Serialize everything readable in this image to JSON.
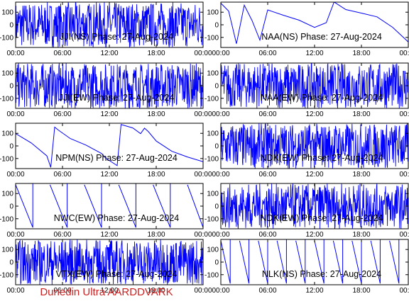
{
  "footer": "Dunedin Ultra AARDDVARK",
  "colors": {
    "trace": "#0000ff",
    "axes": "#000000",
    "footer": "#cc2222"
  },
  "chart_data": [
    {
      "type": "line",
      "title": "JJI(NS) Phase: 27-Aug-2024",
      "ylim": [
        -180,
        180
      ],
      "xlim": [
        0,
        24
      ],
      "yticks": [
        "100",
        "0",
        "-100"
      ],
      "xticks": [
        "00:00",
        "06:00",
        "12:00",
        "18:00",
        "00:00"
      ],
      "pattern": "noise",
      "x": [
        0,
        2,
        4,
        5.5,
        24
      ],
      "y": [
        0,
        0,
        0,
        0,
        0
      ]
    },
    {
      "type": "line",
      "title": "NAA(NS) Phase: 27-Aug-2024",
      "ylim": [
        -180,
        180
      ],
      "xlim": [
        0,
        24
      ],
      "yticks": [
        "100",
        "0",
        "-100"
      ],
      "xticks": [
        "00:00",
        "06:00",
        "12:00",
        "18:00",
        "00:00"
      ],
      "pattern": "trace",
      "x": [
        0,
        1,
        2,
        3,
        4,
        5,
        6,
        8,
        10,
        12,
        13.5,
        14.5,
        16,
        18,
        20,
        22,
        24
      ],
      "y": [
        170,
        110,
        -150,
        160,
        30,
        -120,
        120,
        80,
        40,
        -20,
        20,
        180,
        120,
        90,
        60,
        -20,
        -140
      ]
    },
    {
      "type": "line",
      "title": "JJI(EW) Phase: 27-Aug-2024",
      "ylim": [
        -180,
        180
      ],
      "xlim": [
        0,
        24
      ],
      "yticks": [
        "100",
        "0",
        "-100"
      ],
      "xticks": [
        "00:00",
        "06:00",
        "12:00",
        "18:00",
        "00:00"
      ],
      "pattern": "noise",
      "x": [
        0,
        6,
        12,
        18,
        24
      ],
      "y": [
        0,
        0,
        0,
        0,
        0
      ]
    },
    {
      "type": "line",
      "title": "NAA(EW) Phase: 27-Aug-2024",
      "ylim": [
        -180,
        180
      ],
      "xlim": [
        0,
        24
      ],
      "yticks": [
        "100",
        "0",
        "-100"
      ],
      "xticks": [
        "00:00",
        "06:00",
        "12:00",
        "18:00",
        "00:00"
      ],
      "pattern": "noise",
      "x": [
        0,
        6,
        12,
        18,
        24
      ],
      "y": [
        0,
        0,
        0,
        0,
        0
      ]
    },
    {
      "type": "line",
      "title": "NPM(NS) Phase: 27-Aug-2024",
      "ylim": [
        -180,
        180
      ],
      "xlim": [
        0,
        24
      ],
      "yticks": [
        "100",
        "0",
        "-100"
      ],
      "xticks": [
        "00:00",
        "06:00",
        "12:00",
        "18:00",
        "00:00"
      ],
      "pattern": "trace",
      "x": [
        0,
        2,
        4,
        4.5,
        5,
        5.5,
        7,
        9,
        11,
        11.5,
        13,
        13.5,
        15,
        16,
        16.5,
        17,
        18,
        20,
        22,
        24
      ],
      "y": [
        100,
        20,
        -80,
        -170,
        150,
        120,
        60,
        10,
        -60,
        -100,
        -160,
        170,
        140,
        100,
        140,
        110,
        40,
        -40,
        -90,
        -130
      ]
    },
    {
      "type": "line",
      "title": "NDK(EW) Phase: 27-Aug-2024",
      "ylim": [
        -180,
        180
      ],
      "xlim": [
        0,
        24
      ],
      "yticks": [
        "100",
        "0",
        "-100"
      ],
      "xticks": [
        "00:00",
        "06:00",
        "12:00",
        "18:00",
        "00:00"
      ],
      "pattern": "noise",
      "x": [
        0,
        6,
        12,
        18,
        24
      ],
      "y": [
        0,
        0,
        0,
        0,
        0
      ]
    },
    {
      "type": "line",
      "title": "NWC(EW) Phase: 27-Aug-2024",
      "ylim": [
        -180,
        180
      ],
      "xlim": [
        0,
        24
      ],
      "yticks": [
        "100",
        "0",
        "-100"
      ],
      "xticks": [
        "00:00",
        "06:00",
        "12:00",
        "18:00",
        "00:00"
      ],
      "pattern": "sawtooth",
      "x": [
        0,
        2.2,
        4.4,
        6.6,
        8.8,
        11,
        13.2,
        15.4,
        17.6,
        19.8,
        22,
        24
      ],
      "y": [
        170,
        -170,
        170,
        -170,
        170,
        -170,
        170,
        -170,
        170,
        -170,
        170,
        -170
      ]
    },
    {
      "type": "line",
      "title": "NDK(EW) Phase: 27-Aug-2024",
      "ylim": [
        -180,
        180
      ],
      "xlim": [
        0,
        24
      ],
      "yticks": [
        "100",
        "0",
        "-100"
      ],
      "xticks": [
        "00:00",
        "06:00",
        "12:00",
        "18:00",
        "00:00"
      ],
      "pattern": "noise",
      "x": [
        0,
        6,
        12,
        18,
        24
      ],
      "y": [
        0,
        0,
        0,
        0,
        0
      ]
    },
    {
      "type": "line",
      "title": "VTX(EW) Phase: 27-Aug-2024",
      "ylim": [
        -180,
        180
      ],
      "xlim": [
        0,
        24
      ],
      "yticks": [
        "100",
        "0",
        "-100"
      ],
      "xticks": [
        "00:00",
        "06:00",
        "12:00",
        "18:00",
        "00:00"
      ],
      "pattern": "noise",
      "x": [
        0,
        6,
        12,
        18,
        24
      ],
      "y": [
        0,
        0,
        0,
        0,
        0
      ]
    },
    {
      "type": "line",
      "title": "NLK(NS) Phase: 27-Aug-2024",
      "ylim": [
        -180,
        180
      ],
      "xlim": [
        0,
        24
      ],
      "yticks": [
        "100",
        "0",
        "-100"
      ],
      "xticks": [
        "00:00",
        "06:00",
        "12:00",
        "18:00",
        "00:00"
      ],
      "pattern": "sawtooth",
      "x": [
        0,
        1.2,
        2.4,
        3.6,
        4.8,
        6,
        7.2,
        8.4,
        9.6,
        10.8,
        12,
        13.2,
        14.4,
        15.6,
        16.8,
        18,
        19.2,
        20.4,
        21.6,
        22.8,
        24
      ],
      "y": [
        170,
        -170,
        170,
        -170,
        170,
        -170,
        170,
        -170,
        170,
        -170,
        170,
        -170,
        170,
        -170,
        170,
        -170,
        170,
        -170,
        170,
        -170,
        170
      ]
    }
  ]
}
